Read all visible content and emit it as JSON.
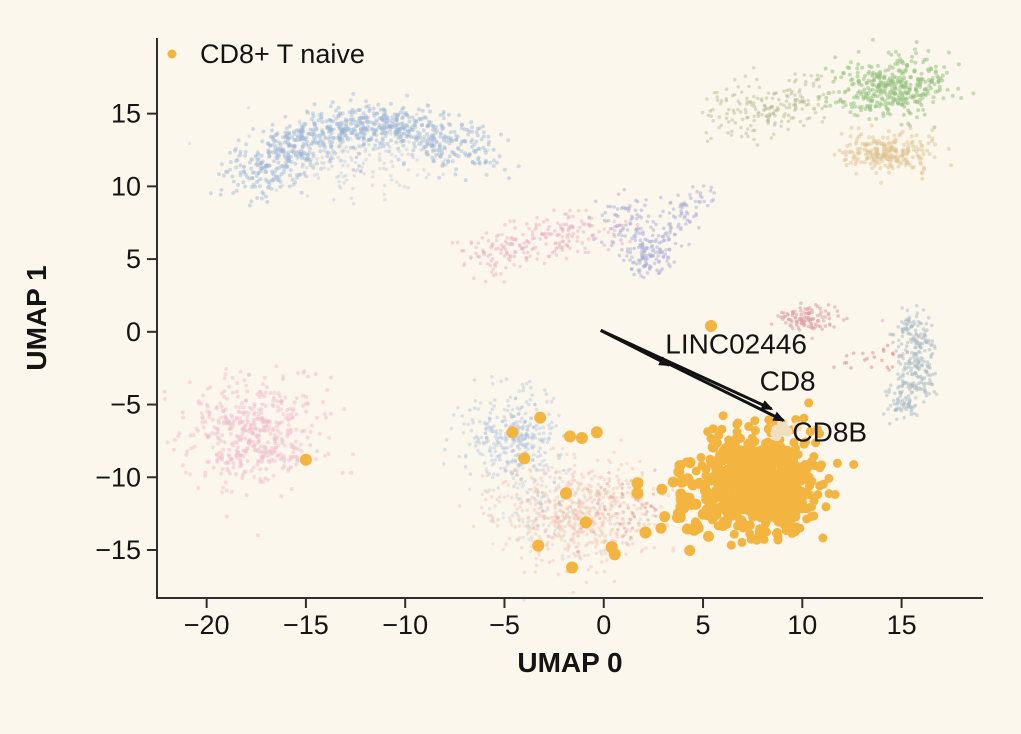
{
  "figure": {
    "background": "#fcf7ed",
    "spine_color": "#2e2e2e",
    "text_color": "#141414",
    "arrow_color": "#121212"
  },
  "chart_data": {
    "type": "scatter",
    "title": "",
    "xlabel": "UMAP 0",
    "ylabel": "UMAP 1",
    "xlim": [
      -22.5,
      19.1
    ],
    "ylim": [
      -18.3,
      20.2
    ],
    "x_ticks": [
      -20,
      -15,
      -10,
      -5,
      0,
      5,
      10,
      15
    ],
    "y_ticks": [
      15,
      10,
      5,
      0,
      -5,
      -10,
      -15
    ],
    "grid": false,
    "legend": {
      "position": "upper-left",
      "entries": [
        {
          "label": "CD8+ T naive",
          "color": "#f3b440"
        }
      ]
    },
    "annotations": [
      {
        "label": "LINC02446",
        "arrow_from": [
          -0.15,
          0.1
        ],
        "arrow_to": [
          3.3,
          -2.3
        ],
        "label_pos": [
          3.1,
          -1.5
        ]
      },
      {
        "label": "CD8",
        "arrow_from": [
          -0.15,
          0.1
        ],
        "arrow_to": [
          8.45,
          -5.3
        ],
        "label_pos": [
          7.85,
          -4.05
        ]
      },
      {
        "label": "CD8B",
        "arrow_from": [
          -0.15,
          0.1
        ],
        "arrow_to": [
          9.05,
          -6.1
        ],
        "label_pos": [
          9.5,
          -7.55
        ]
      }
    ],
    "highlighted_cluster": {
      "label": "CD8+ T naive",
      "color": "#f3b440",
      "center": [
        7.9,
        -10.3
      ],
      "x_range": [
        4.5,
        10.8
      ],
      "y_range": [
        -14.5,
        -6.6
      ],
      "outlier_points": [
        [
          -15.0,
          -8.8
        ],
        [
          5.4,
          0.4
        ],
        [
          -3.2,
          -5.9
        ],
        [
          -4.6,
          -6.9
        ],
        [
          -1.7,
          -7.2
        ],
        [
          -1.1,
          -7.3
        ],
        [
          -0.35,
          -6.9
        ],
        [
          -4.0,
          -8.7
        ],
        [
          -1.9,
          -11.1
        ],
        [
          1.7,
          -10.4
        ],
        [
          1.7,
          -11.1
        ],
        [
          -0.9,
          -13.1
        ],
        [
          -3.3,
          -14.7
        ],
        [
          0.4,
          -14.8
        ],
        [
          0.55,
          -15.3
        ],
        [
          2.1,
          -13.8
        ],
        [
          -1.6,
          -16.2
        ]
      ]
    },
    "clusters": [
      {
        "name": "blue-crescent",
        "type": "bezier",
        "p0": [
          -17.9,
          10.0
        ],
        "p1": [
          -13.0,
          17.5
        ],
        "p2": [
          -6.0,
          12.0
        ],
        "jitter": 1.0,
        "n": 850,
        "color": "#9bb5d8",
        "r": 2.0,
        "opacity": 0.45
      },
      {
        "name": "blue-crescent-fill",
        "type": "gauss",
        "center": [
          -12.5,
          12.0
        ],
        "sigma": [
          2.6,
          1.4
        ],
        "n": 220,
        "color": "#9bb5d8",
        "r": 1.8,
        "opacity": 0.28
      },
      {
        "name": "pink-band-center",
        "type": "segments",
        "pts": [
          [
            -6.6,
            5.2
          ],
          [
            -3.3,
            6.2
          ],
          [
            0.3,
            7.4
          ]
        ],
        "jitter": 0.8,
        "n": 240,
        "color": "#e9b4c1",
        "r": 1.8,
        "opacity": 0.5
      },
      {
        "name": "purple-v",
        "type": "segments",
        "pts": [
          [
            0.7,
            8.9
          ],
          [
            2.0,
            4.5
          ],
          [
            2.7,
            6.1
          ],
          [
            5.0,
            9.6
          ]
        ],
        "jitter": 0.55,
        "n": 270,
        "color": "#a9aed8",
        "r": 1.8,
        "opacity": 0.5
      },
      {
        "name": "olive-tail",
        "type": "segments",
        "pts": [
          [
            5.6,
            14.9
          ],
          [
            8.2,
            15.3
          ],
          [
            11.3,
            16.1
          ]
        ],
        "jitter": 0.85,
        "n": 200,
        "color": "#a9b183",
        "r": 1.8,
        "opacity": 0.4
      },
      {
        "name": "green-topright",
        "type": "gauss",
        "center": [
          14.5,
          16.8
        ],
        "sigma": [
          1.4,
          1.05
        ],
        "n": 380,
        "color": "#8fbf7a",
        "r": 2.0,
        "opacity": 0.5
      },
      {
        "name": "tan-right",
        "type": "gauss",
        "center": [
          14.4,
          12.3
        ],
        "sigma": [
          1.15,
          0.7
        ],
        "n": 240,
        "color": "#e0c391",
        "r": 2.0,
        "opacity": 0.5
      },
      {
        "name": "pink-small-right",
        "type": "gauss",
        "center": [
          10.2,
          1.0
        ],
        "sigma": [
          0.7,
          0.42
        ],
        "n": 110,
        "color": "#dc9ea8",
        "r": 1.8,
        "opacity": 0.55
      },
      {
        "name": "red-sparse-right",
        "type": "gauss",
        "center": [
          13.4,
          -1.9
        ],
        "sigma": [
          0.8,
          0.55
        ],
        "n": 22,
        "color": "#d18b8b",
        "r": 1.8,
        "opacity": 0.5
      },
      {
        "name": "bluegray-right",
        "type": "segments",
        "pts": [
          [
            15.3,
            0.9
          ],
          [
            15.8,
            -1.6
          ],
          [
            15.9,
            -3.4
          ],
          [
            14.7,
            -5.3
          ]
        ],
        "jitter": 0.5,
        "n": 300,
        "color": "#a9bcc6",
        "r": 1.8,
        "opacity": 0.5
      },
      {
        "name": "pink-left-big",
        "type": "gauss",
        "center": [
          -17.5,
          -7.0
        ],
        "sigma": [
          1.75,
          1.8
        ],
        "n": 480,
        "color": "#f0becb",
        "r": 2.0,
        "opacity": 0.5
      },
      {
        "name": "blue-bottom",
        "type": "gauss",
        "center": [
          -4.7,
          -7.2
        ],
        "sigma": [
          1.2,
          1.45
        ],
        "n": 330,
        "color": "#a9c0dc",
        "r": 1.8,
        "opacity": 0.4
      },
      {
        "name": "salmon-bottom",
        "type": "gauss",
        "center": [
          -1.2,
          -12.6
        ],
        "sigma": [
          1.95,
          1.8
        ],
        "n": 600,
        "color": "#eec0af",
        "r": 1.8,
        "opacity": 0.42
      },
      {
        "name": "blue-in-salmon",
        "type": "gauss",
        "center": [
          -3.2,
          -11.3
        ],
        "sigma": [
          1.3,
          1.6
        ],
        "n": 130,
        "color": "#a9c0dc",
        "r": 1.6,
        "opacity": 0.3
      },
      {
        "name": "red-specks-bottom",
        "type": "gauss",
        "center": [
          0.8,
          -12.3
        ],
        "sigma": [
          1.3,
          1.3
        ],
        "n": 55,
        "color": "#df9b94",
        "r": 1.6,
        "opacity": 0.5
      },
      {
        "name": "orange-satellites",
        "type": "gauss",
        "center": [
          4.7,
          -11.6
        ],
        "sigma": [
          1.15,
          1.5
        ],
        "n": 60,
        "color": "#f3b440",
        "r": 5.5,
        "opacity": 1
      },
      {
        "name": "orange-main",
        "type": "gauss",
        "center": [
          7.9,
          -10.3
        ],
        "sigma": [
          1.35,
          1.7
        ],
        "n": 780,
        "color": "#f3b440",
        "r": 4.5,
        "opacity": 1
      },
      {
        "name": "pale-patch",
        "type": "gauss",
        "center": [
          9.0,
          -6.7
        ],
        "sigma": [
          0.3,
          0.3
        ],
        "n": 10,
        "color": "#f1dfc1",
        "r": 5.0,
        "opacity": 1
      }
    ]
  }
}
